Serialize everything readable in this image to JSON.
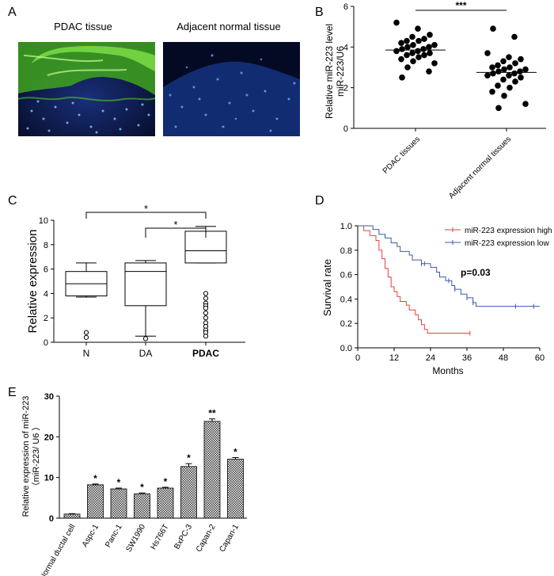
{
  "panels": {
    "a": {
      "letter": "A",
      "image_left_label": "PDAC tissue",
      "image_right_label": "Adjacent normal tissue"
    },
    "b": {
      "letter": "B"
    },
    "c": {
      "letter": "C"
    },
    "d": {
      "letter": "D"
    },
    "e": {
      "letter": "E"
    }
  },
  "chart_data": [
    {
      "id": "B",
      "type": "scatter",
      "ylabel_line1": "Relative miR-223 level",
      "ylabel_line2": "miR-223/U6",
      "ylim": [
        0,
        6
      ],
      "yticks": [
        0,
        2,
        4,
        6
      ],
      "categories": [
        "PDAC tissues",
        "Adjacent normal tissues"
      ],
      "means": [
        3.85,
        2.75
      ],
      "significance": "***",
      "series": [
        {
          "name": "PDAC tissues",
          "values": [
            5.2,
            4.9,
            4.6,
            4.5,
            4.4,
            4.3,
            4.3,
            4.2,
            4.1,
            4.1,
            4.0,
            4.0,
            3.9,
            3.9,
            3.8,
            3.8,
            3.7,
            3.7,
            3.6,
            3.6,
            3.5,
            3.4,
            3.3,
            3.2,
            3.0,
            2.8,
            2.5
          ]
        },
        {
          "name": "Adjacent normal tissues",
          "values": [
            4.9,
            4.5,
            3.7,
            3.5,
            3.4,
            3.3,
            3.2,
            3.1,
            3.0,
            3.0,
            2.9,
            2.9,
            2.8,
            2.8,
            2.7,
            2.7,
            2.6,
            2.6,
            2.5,
            2.4,
            2.3,
            2.1,
            2.0,
            1.8,
            1.6,
            1.2,
            1.0
          ]
        }
      ]
    },
    {
      "id": "C",
      "type": "box",
      "ylabel": "Relative expression",
      "ylim": [
        0,
        10
      ],
      "yticks": [
        0,
        2,
        4,
        6,
        8,
        10
      ],
      "categories": [
        "N",
        "DA",
        "PDAC"
      ],
      "boxes": [
        {
          "name": "N",
          "min": 3.7,
          "q1": 3.8,
          "median": 4.8,
          "q3": 5.8,
          "max": 6.5,
          "outliers": [
            0.8,
            0.4
          ]
        },
        {
          "name": "DA",
          "min": 0.5,
          "q1": 3.0,
          "median": 5.8,
          "q3": 6.5,
          "max": 6.7,
          "outliers": [
            0.3
          ]
        },
        {
          "name": "PDAC",
          "min": 6.5,
          "q1": 6.5,
          "median": 7.5,
          "q3": 9.1,
          "max": 9.5,
          "outliers": [
            4.0,
            3.6,
            3.2,
            3.0,
            2.8,
            2.4,
            2.0,
            1.6,
            1.3,
            1.0,
            0.8,
            0.5
          ]
        }
      ],
      "brackets": [
        {
          "from": "N",
          "to": "PDAC",
          "label": "*"
        },
        {
          "from": "DA",
          "to": "PDAC",
          "label": "*"
        }
      ]
    },
    {
      "id": "D",
      "type": "line",
      "subtype": "kaplan-meier",
      "xlabel": "Months",
      "ylabel": "Survival rate",
      "xlim": [
        0,
        60
      ],
      "ylim": [
        0,
        1.0
      ],
      "xticks": [
        0,
        12,
        24,
        36,
        48,
        60
      ],
      "yticks": [
        0.0,
        0.2,
        0.4,
        0.6,
        0.8,
        1.0
      ],
      "p_value_text": "p=0.03",
      "series": [
        {
          "name": "miR-223 expression high",
          "color": "#e8413c",
          "x": [
            0,
            2,
            4,
            6,
            7,
            8,
            9,
            10,
            11,
            12,
            13,
            14,
            16,
            17,
            19,
            20,
            21,
            22,
            23,
            24,
            37
          ],
          "y": [
            1.0,
            0.96,
            0.92,
            0.88,
            0.8,
            0.73,
            0.65,
            0.58,
            0.5,
            0.46,
            0.42,
            0.38,
            0.35,
            0.31,
            0.27,
            0.23,
            0.19,
            0.15,
            0.12,
            0.12,
            0.12
          ],
          "censors": [
            37
          ]
        },
        {
          "name": "miR-223 expression low",
          "color": "#3d5aa8",
          "x": [
            0,
            5,
            7,
            9,
            11,
            13,
            14,
            17,
            18,
            21,
            24,
            26,
            27,
            29,
            31,
            32,
            34,
            36,
            38,
            39,
            42,
            60
          ],
          "y": [
            1.0,
            0.97,
            0.93,
            0.9,
            0.86,
            0.83,
            0.79,
            0.76,
            0.72,
            0.69,
            0.66,
            0.62,
            0.58,
            0.55,
            0.51,
            0.48,
            0.44,
            0.41,
            0.37,
            0.34,
            0.34,
            0.34
          ],
          "censors": [
            21,
            22,
            30,
            32,
            36,
            38,
            52,
            58
          ]
        }
      ]
    },
    {
      "id": "E",
      "type": "bar",
      "ylabel_line1": "Relative expression of miR-223",
      "ylabel_line2": "（miR-223/ U6 ）",
      "ylim": [
        0,
        30
      ],
      "yticks": [
        0,
        10,
        20,
        30
      ],
      "categories": [
        "Normal ductal cell",
        "Aspc-1",
        "Panc-1",
        "SW1990",
        "Hs766T",
        "BxPC-3",
        "Capan-2",
        "Capan-1"
      ],
      "values": [
        1.0,
        8.2,
        7.2,
        6.0,
        7.4,
        12.7,
        23.8,
        14.5
      ],
      "errors": [
        0.1,
        0.2,
        0.2,
        0.2,
        0.2,
        0.7,
        0.6,
        0.4
      ],
      "significance": [
        "",
        "*",
        "*",
        "*",
        "*",
        "*",
        "**",
        "*"
      ]
    }
  ]
}
